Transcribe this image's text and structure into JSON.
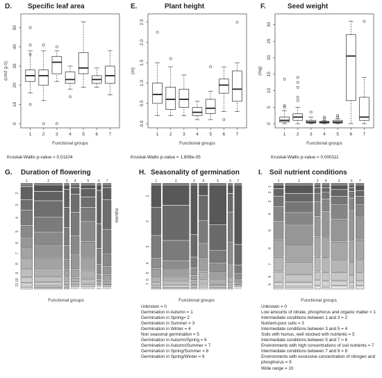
{
  "chart_data": [
    {
      "type": "boxplot",
      "panel_letter": "D.",
      "title": "Specific leaf area",
      "ylabel": "(cm2 g-1)",
      "xlabel": "Functional groups",
      "categories": [
        "1",
        "2",
        "3",
        "4",
        "5",
        "6",
        "7"
      ],
      "ylim": [
        0,
        55
      ],
      "yticks": [
        0,
        10,
        20,
        30,
        40,
        50
      ],
      "boxes": [
        {
          "group": "1",
          "whisker_low": 16,
          "q1": 22,
          "median": 25,
          "q3": 28,
          "whisker_high": 38,
          "outliers": [
            10,
            36,
            41,
            50
          ]
        },
        {
          "group": "2",
          "whisker_low": 12,
          "q1": 20,
          "median": 25,
          "q3": 28,
          "whisker_high": 38,
          "outliers": [
            0,
            41
          ]
        },
        {
          "group": "3",
          "whisker_low": 22,
          "q1": 26,
          "median": 32,
          "q3": 35,
          "whisker_high": 38,
          "outliers": [
            0,
            40
          ]
        },
        {
          "group": "4",
          "whisker_low": 18,
          "q1": 21,
          "median": 23,
          "q3": 27,
          "whisker_high": 30,
          "outliers": [
            14
          ]
        },
        {
          "group": "5",
          "whisker_low": 19,
          "q1": 26,
          "median": 29,
          "q3": 37,
          "whisker_high": 53,
          "outliers": []
        },
        {
          "group": "6",
          "whisker_low": 19,
          "q1": 21,
          "median": 23,
          "q3": 25,
          "whisker_high": 29,
          "outliers": []
        },
        {
          "group": "7",
          "whisker_low": 15,
          "q1": 21,
          "median": 25,
          "q3": 30,
          "whisker_high": 38,
          "outliers": []
        }
      ],
      "kruskal_wallis": "Kruskal-Wallis p-value = 0.01104"
    },
    {
      "type": "boxplot",
      "panel_letter": "E.",
      "title": "Plant height",
      "ylabel": "(m)",
      "xlabel": "Functional groups",
      "categories": [
        "1",
        "2",
        "3",
        "4",
        "5",
        "6",
        "7"
      ],
      "ylim": [
        0,
        2.6
      ],
      "yticks": [
        0.0,
        0.5,
        1.0,
        1.5,
        2.0,
        2.5
      ],
      "boxes": [
        {
          "group": "1",
          "whisker_low": 0.2,
          "q1": 0.5,
          "median": 0.72,
          "q3": 1.0,
          "whisker_high": 1.5,
          "outliers": [
            2.25
          ]
        },
        {
          "group": "2",
          "whisker_low": 0.2,
          "q1": 0.35,
          "median": 0.6,
          "q3": 0.9,
          "whisker_high": 1.4,
          "outliers": [
            1.6
          ]
        },
        {
          "group": "3",
          "whisker_low": 0.2,
          "q1": 0.4,
          "median": 0.6,
          "q3": 0.85,
          "whisker_high": 1.2,
          "outliers": []
        },
        {
          "group": "4",
          "whisker_low": 0.1,
          "q1": 0.2,
          "median": 0.28,
          "q3": 0.4,
          "whisker_high": 0.55,
          "outliers": []
        },
        {
          "group": "5",
          "whisker_low": 0.1,
          "q1": 0.25,
          "median": 0.38,
          "q3": 0.6,
          "whisker_high": 0.8,
          "outliers": [
            1.4
          ]
        },
        {
          "group": "6",
          "whisker_low": 0.3,
          "q1": 0.75,
          "median": 0.95,
          "q3": 1.1,
          "whisker_high": 1.4,
          "outliers": [
            0.1
          ]
        },
        {
          "group": "7",
          "whisker_low": 0.3,
          "q1": 0.55,
          "median": 0.85,
          "q3": 1.3,
          "whisker_high": 1.5,
          "outliers": [
            2.5
          ]
        }
      ],
      "kruskal_wallis": "Kruskal-Wallis p-value = 1.808e-05"
    },
    {
      "type": "boxplot",
      "panel_letter": "F.",
      "title": "Seed weight",
      "ylabel": "(mg)",
      "xlabel": "Functional groups",
      "categories": [
        "1",
        "2",
        "3",
        "4",
        "5",
        "6",
        "7"
      ],
      "ylim": [
        0,
        32
      ],
      "yticks": [
        0,
        5,
        10,
        15,
        20,
        25,
        30
      ],
      "boxes": [
        {
          "group": "1",
          "whisker_low": 0,
          "q1": 0.5,
          "median": 1,
          "q3": 2,
          "whisker_high": 4,
          "outliers": [
            5,
            5.5,
            13.5
          ]
        },
        {
          "group": "2",
          "whisker_low": 0,
          "q1": 1,
          "median": 2,
          "q3": 3,
          "whisker_high": 5,
          "outliers": [
            7,
            8,
            11,
            12.5,
            14
          ]
        },
        {
          "group": "3",
          "whisker_low": 0,
          "q1": 0.2,
          "median": 0.5,
          "q3": 1,
          "whisker_high": 2,
          "outliers": [
            3.5
          ]
        },
        {
          "group": "4",
          "whisker_low": 0,
          "q1": 0.2,
          "median": 0.4,
          "q3": 0.7,
          "whisker_high": 1,
          "outliers": [
            1.5,
            2
          ]
        },
        {
          "group": "5",
          "whisker_low": 0,
          "q1": 0.2,
          "median": 0.5,
          "q3": 1,
          "whisker_high": 1.5,
          "outliers": [
            2,
            2.5
          ]
        },
        {
          "group": "6",
          "whisker_low": 0,
          "q1": 7,
          "median": 20.5,
          "q3": 27,
          "whisker_high": 31,
          "outliers": []
        },
        {
          "group": "7",
          "whisker_low": 0,
          "q1": 1,
          "median": 2,
          "q3": 8,
          "whisker_high": 14,
          "outliers": [
            31
          ]
        }
      ],
      "kruskal_wallis": "Kruskal-Wallis p-value = 0.000111"
    },
    {
      "type": "mosaic",
      "panel_letter": "G.",
      "title": "Duration of flowering",
      "ylabel": "months",
      "xlabel": "Functional groups",
      "categories": [
        "1",
        "2",
        "3",
        "4",
        "5",
        "6",
        "7"
      ],
      "column_widths": [
        0.14,
        0.34,
        0.06,
        0.1,
        0.17,
        0.05,
        0.1
      ],
      "row_labels": [
        "0",
        "1",
        "2",
        "3",
        "4",
        "5",
        "6",
        "7",
        "8",
        "9",
        "10",
        "11",
        "12"
      ],
      "shade_levels": 13,
      "columns": [
        [
          0.01,
          0.01,
          0.13,
          0.1,
          0.15,
          0.12,
          0.1,
          0.1,
          0.1,
          0.08,
          0.05,
          0.03,
          0.02
        ],
        [
          0.01,
          0.06,
          0.09,
          0.16,
          0.15,
          0.13,
          0.12,
          0.1,
          0.08,
          0.05,
          0.03,
          0.01,
          0.01
        ],
        [
          0.01,
          0.04,
          0.18,
          0.2,
          0.18,
          0.14,
          0.1,
          0.06,
          0.04,
          0.02,
          0.01,
          0.01,
          0.01
        ],
        [
          0.01,
          0.02,
          0.06,
          0.18,
          0.24,
          0.19,
          0.14,
          0.08,
          0.04,
          0.02,
          0.01,
          0.005,
          0.005
        ],
        [
          0.01,
          0.03,
          0.08,
          0.1,
          0.14,
          0.2,
          0.16,
          0.12,
          0.08,
          0.05,
          0.02,
          0.005,
          0.005
        ],
        [
          0.01,
          0.05,
          0.34,
          0.25,
          0.16,
          0.09,
          0.05,
          0.02,
          0.01,
          0.01,
          0.005,
          0.003,
          0.002
        ],
        [
          0.01,
          0.02,
          0.12,
          0.3,
          0.25,
          0.12,
          0.08,
          0.05,
          0.02,
          0.01,
          0.01,
          0.005,
          0.005
        ]
      ]
    },
    {
      "type": "mosaic",
      "panel_letter": "H.",
      "title": "Seasonality of germination",
      "xlabel": "Functional groups",
      "categories": [
        "1",
        "2",
        "3",
        "4",
        "5",
        "6",
        "7"
      ],
      "column_widths": [
        0.12,
        0.33,
        0.08,
        0.11,
        0.21,
        0.06,
        0.09
      ],
      "row_labels": [
        "0",
        "1",
        "2",
        "3",
        "4",
        "5",
        "6",
        "7",
        "8",
        "9"
      ],
      "shade_levels": 10,
      "columns": [
        [
          0.01,
          0.22,
          0.28,
          0.22,
          0.1,
          0.08,
          0.04,
          0.03,
          0.01,
          0.01
        ],
        [
          0.01,
          0.2,
          0.35,
          0.2,
          0.08,
          0.06,
          0.04,
          0.03,
          0.02,
          0.01
        ],
        [
          0.01,
          0.5,
          0.22,
          0.1,
          0.07,
          0.04,
          0.03,
          0.01,
          0.01,
          0.01
        ],
        [
          0.01,
          0.1,
          0.25,
          0.22,
          0.15,
          0.12,
          0.07,
          0.04,
          0.02,
          0.02
        ],
        [
          0.01,
          0.4,
          0.25,
          0.12,
          0.09,
          0.06,
          0.04,
          0.01,
          0.01,
          0.01
        ],
        [
          0.01,
          0.08,
          0.18,
          0.3,
          0.22,
          0.12,
          0.05,
          0.02,
          0.01,
          0.01
        ],
        [
          0.01,
          0.6,
          0.2,
          0.08,
          0.05,
          0.03,
          0.01,
          0.01,
          0.005,
          0.005
        ]
      ],
      "legend": [
        "Unknown = 0",
        "Germination in Autumn = 1",
        "Germination in Spring= 2",
        "Germination in Summer = 3",
        "Germination in Winter = 4",
        "Non seasonal germination = 5",
        "Germination in Autumn/Spring = 6",
        "Germination in Autumn/Summer = 7",
        "Germination in Spring/Summer = 8",
        "Germination in Spring/Winter = 9"
      ]
    },
    {
      "type": "mosaic",
      "panel_letter": "I.",
      "title": "Soil nutrient conditions",
      "xlabel": "Functional groups",
      "categories": [
        "1",
        "2",
        "3",
        "4",
        "5",
        "6",
        "7"
      ],
      "column_widths": [
        0.12,
        0.34,
        0.07,
        0.09,
        0.2,
        0.06,
        0.1
      ],
      "row_labels": [
        "0",
        "1",
        "2",
        "3",
        "4",
        "5",
        "6",
        "7",
        "8",
        "9",
        "10"
      ],
      "shade_levels": 11,
      "columns": [
        [
          0.01,
          0.03,
          0.07,
          0.1,
          0.14,
          0.18,
          0.17,
          0.14,
          0.1,
          0.04,
          0.02
        ],
        [
          0.01,
          0.08,
          0.08,
          0.1,
          0.12,
          0.2,
          0.16,
          0.12,
          0.07,
          0.04,
          0.02
        ],
        [
          0.01,
          0.02,
          0.05,
          0.08,
          0.14,
          0.2,
          0.2,
          0.14,
          0.08,
          0.05,
          0.03
        ],
        [
          0.01,
          0.02,
          0.04,
          0.06,
          0.12,
          0.26,
          0.2,
          0.14,
          0.08,
          0.05,
          0.02
        ],
        [
          0.01,
          0.04,
          0.06,
          0.08,
          0.14,
          0.22,
          0.18,
          0.12,
          0.08,
          0.04,
          0.03
        ],
        [
          0.01,
          0.02,
          0.03,
          0.06,
          0.12,
          0.3,
          0.22,
          0.12,
          0.06,
          0.04,
          0.02
        ],
        [
          0.01,
          0.05,
          0.05,
          0.08,
          0.12,
          0.22,
          0.2,
          0.12,
          0.08,
          0.04,
          0.03
        ]
      ],
      "legend": [
        "Unknown = 0",
        "Low amounts of nitrate, phosphorus and organic matter = 1",
        "Intermediate conditions between 1 and 3 = 2",
        "Nutrient-poor soils = 3",
        "Intermediate conditions between 3 and 5 = 4",
        "Soils with humus, well stocked with nutrients = 5",
        "Intermediate conditions between 5 and 7 = 6",
        "Environments with high concentrations of soil nutrients = 7",
        "Intermediate conditions between 7 and 9 = 8",
        "Environments with excessive concentration of nitrogen and",
        "phosphorus = 9",
        "Wide range = 10"
      ]
    }
  ]
}
